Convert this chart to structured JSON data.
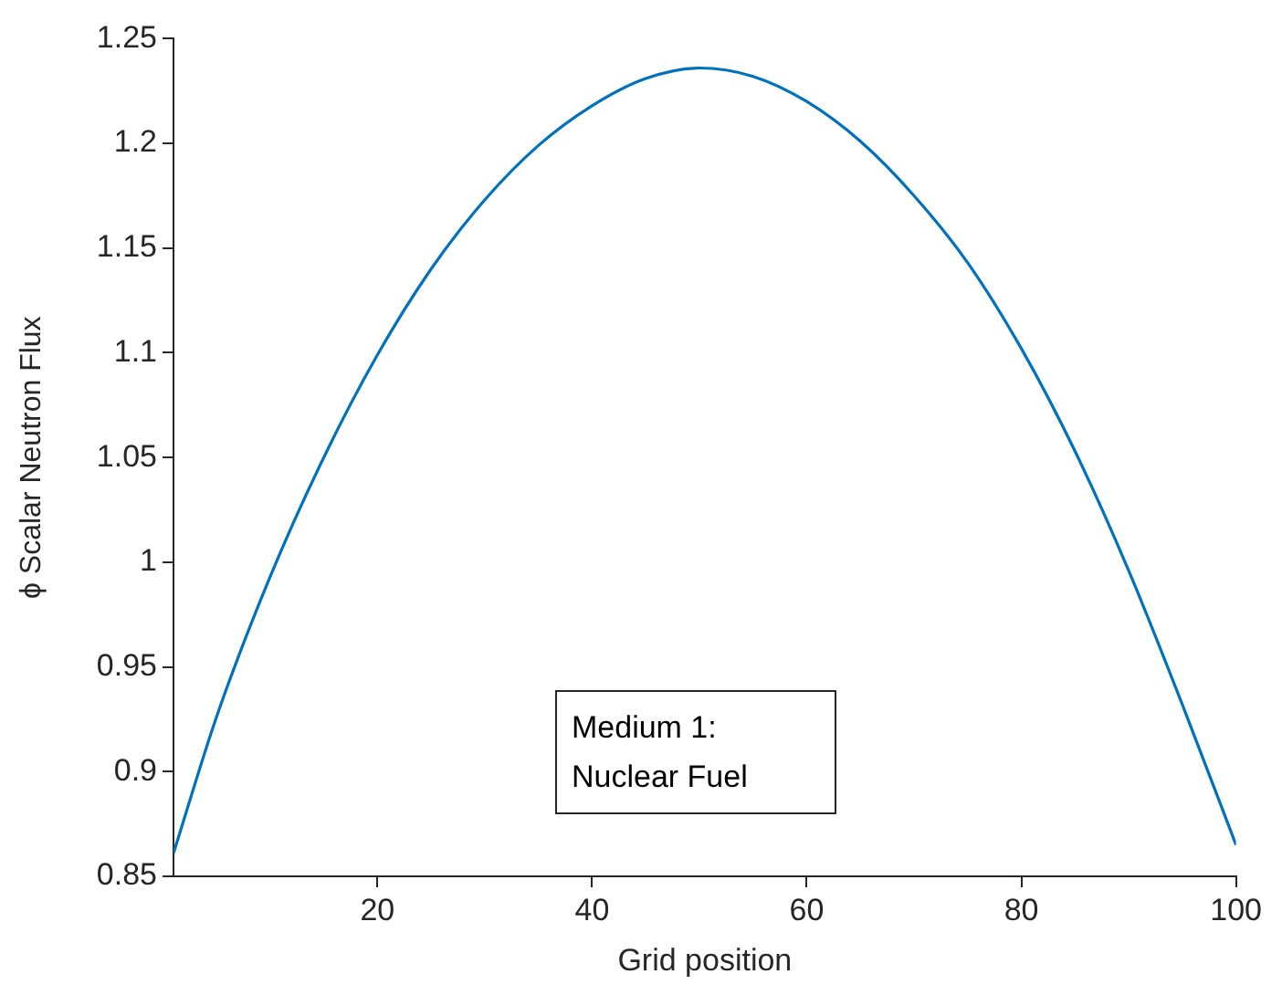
{
  "chart_data": {
    "type": "line",
    "xlabel": "Grid position",
    "ylabel": "ϕ Scalar Neutron Flux",
    "annotations": [
      "Medium 1:\nNuclear Fuel"
    ],
    "x": [
      1,
      5,
      10,
      15,
      20,
      25,
      30,
      35,
      40,
      45,
      50,
      55,
      60,
      65,
      70,
      75,
      80,
      85,
      90,
      95,
      100
    ],
    "series": [
      {
        "color": "#0072bd",
        "values": [
          0.861,
          0.926,
          0.993,
          1.05,
          1.099,
          1.14,
          1.173,
          1.199,
          1.218,
          1.231,
          1.236,
          1.232,
          1.22,
          1.201,
          1.175,
          1.143,
          1.102,
          1.053,
          0.996,
          0.932,
          0.865
        ]
      }
    ],
    "xlim": [
      1,
      100
    ],
    "xticks": [
      20,
      40,
      60,
      80,
      100
    ],
    "ylim": [
      0.85,
      1.25
    ],
    "yticks": [
      0.85,
      0.9,
      0.95,
      1,
      1.05,
      1.1,
      1.15,
      1.2,
      1.25
    ],
    "grid": false,
    "legend": false,
    "marker": "none",
    "line_style": "solid"
  }
}
